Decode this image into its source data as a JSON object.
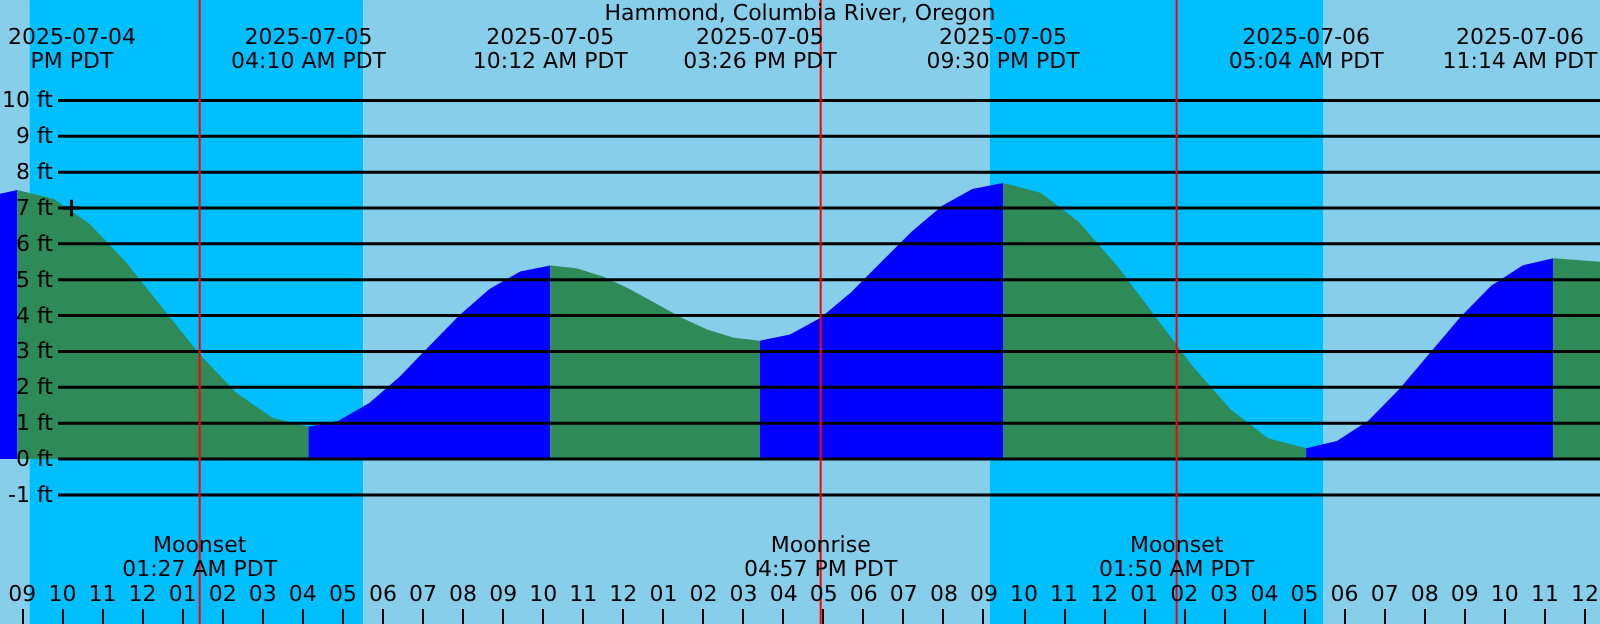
{
  "chart_data": {
    "type": "area",
    "title": "Hammond, Columbia River, Oregon",
    "series": [
      {
        "color": "#0000ff",
        "x": [
          "2025-07-04T20:28",
          "2025-07-04T20:54"
        ],
        "values": [
          7.4,
          7.5
        ]
      },
      {
        "color": "#2e8b57",
        "x": [
          "2025-07-04T20:54",
          "2025-07-04T21:49",
          "2025-07-04T22:43",
          "2025-07-04T23:38",
          "2025-07-05T00:32",
          "2025-07-05T01:26",
          "2025-07-05T02:21",
          "2025-07-05T03:16",
          "2025-07-05T04:10"
        ],
        "values": [
          7.5,
          7.25,
          6.54,
          5.46,
          4.2,
          2.94,
          1.86,
          1.15,
          0.9
        ]
      },
      {
        "color": "#0000ff",
        "x": [
          "2025-07-05T04:10",
          "2025-07-05T04:55",
          "2025-07-05T05:41",
          "2025-07-05T06:26",
          "2025-07-05T07:11",
          "2025-07-05T07:56",
          "2025-07-05T08:41",
          "2025-07-05T09:27",
          "2025-07-05T10:12"
        ],
        "values": [
          0.9,
          1.07,
          1.56,
          2.29,
          3.15,
          4.01,
          4.74,
          5.23,
          5.4
        ]
      },
      {
        "color": "#2e8b57",
        "x": [
          "2025-07-05T10:12",
          "2025-07-05T10:51",
          "2025-07-05T11:31",
          "2025-07-05T12:10",
          "2025-07-05T12:49",
          "2025-07-05T13:28",
          "2025-07-05T14:07",
          "2025-07-05T14:47",
          "2025-07-05T15:26"
        ],
        "values": [
          5.4,
          5.32,
          5.09,
          4.75,
          4.35,
          3.95,
          3.61,
          3.38,
          3.3
        ]
      },
      {
        "color": "#0000ff",
        "x": [
          "2025-07-05T15:26",
          "2025-07-05T16:11",
          "2025-07-05T16:57",
          "2025-07-05T17:43",
          "2025-07-05T18:28",
          "2025-07-05T19:13",
          "2025-07-05T19:59",
          "2025-07-05T20:44",
          "2025-07-05T21:30"
        ],
        "values": [
          3.3,
          3.47,
          3.94,
          4.66,
          5.5,
          6.34,
          7.06,
          7.53,
          7.7
        ]
      },
      {
        "color": "#2e8b57",
        "x": [
          "2025-07-05T21:30",
          "2025-07-05T22:27",
          "2025-07-05T23:23",
          "2025-07-06T00:20",
          "2025-07-06T01:17",
          "2025-07-06T02:14",
          "2025-07-06T03:11",
          "2025-07-06T04:07",
          "2025-07-06T05:04"
        ],
        "values": [
          7.7,
          7.42,
          6.62,
          5.41,
          4.0,
          2.59,
          1.38,
          0.58,
          0.3
        ]
      },
      {
        "color": "#0000ff",
        "x": [
          "2025-07-06T05:04",
          "2025-07-06T05:50",
          "2025-07-06T06:37",
          "2025-07-06T07:23",
          "2025-07-06T08:09",
          "2025-07-06T08:55",
          "2025-07-06T09:41",
          "2025-07-06T10:28",
          "2025-07-06T11:14"
        ],
        "values": [
          0.3,
          0.5,
          1.07,
          1.94,
          2.95,
          3.96,
          4.83,
          5.4,
          5.6
        ]
      },
      {
        "color": "#2e8b57",
        "x": [
          "2025-07-06T11:14",
          "2025-07-06T12:24"
        ],
        "values": [
          5.6,
          5.5
        ]
      },
      {
        "type": "scatter",
        "marker": "cross",
        "color": "#000000",
        "x": [
          "2025-07-04T22:15"
        ],
        "values": [
          7.0
        ]
      }
    ],
    "xlim": [
      "2025-07-04T20:28",
      "2025-07-06T12:24"
    ],
    "ylim": [
      -4.6,
      12.8
    ],
    "yticks": [
      {
        "value": -1,
        "label": "-1 ft"
      },
      {
        "value": 0,
        "label": "0 ft"
      },
      {
        "value": 1,
        "label": "1 ft"
      },
      {
        "value": 2,
        "label": "2 ft"
      },
      {
        "value": 3,
        "label": "3 ft"
      },
      {
        "value": 4,
        "label": "4 ft"
      },
      {
        "value": 5,
        "label": "5 ft"
      },
      {
        "value": 6,
        "label": "6 ft"
      },
      {
        "value": 7,
        "label": "7 ft"
      },
      {
        "value": 8,
        "label": "8 ft"
      },
      {
        "value": 9,
        "label": "9 ft"
      },
      {
        "value": 10,
        "label": "10 ft"
      }
    ],
    "xticks": [
      {
        "value": "2025-07-04T21:00",
        "label": "09"
      },
      {
        "value": "2025-07-04T22:00",
        "label": "10"
      },
      {
        "value": "2025-07-04T23:00",
        "label": "11"
      },
      {
        "value": "2025-07-05T00:00",
        "label": "12"
      },
      {
        "value": "2025-07-05T01:00",
        "label": "01"
      },
      {
        "value": "2025-07-05T02:00",
        "label": "02"
      },
      {
        "value": "2025-07-05T03:00",
        "label": "03"
      },
      {
        "value": "2025-07-05T04:00",
        "label": "04"
      },
      {
        "value": "2025-07-05T05:00",
        "label": "05"
      },
      {
        "value": "2025-07-05T06:00",
        "label": "06"
      },
      {
        "value": "2025-07-05T07:00",
        "label": "07"
      },
      {
        "value": "2025-07-05T08:00",
        "label": "08"
      },
      {
        "value": "2025-07-05T09:00",
        "label": "09"
      },
      {
        "value": "2025-07-05T10:00",
        "label": "10"
      },
      {
        "value": "2025-07-05T11:00",
        "label": "11"
      },
      {
        "value": "2025-07-05T12:00",
        "label": "12"
      },
      {
        "value": "2025-07-05T13:00",
        "label": "01"
      },
      {
        "value": "2025-07-05T14:00",
        "label": "02"
      },
      {
        "value": "2025-07-05T15:00",
        "label": "03"
      },
      {
        "value": "2025-07-05T16:00",
        "label": "04"
      },
      {
        "value": "2025-07-05T17:00",
        "label": "05"
      },
      {
        "value": "2025-07-05T18:00",
        "label": "06"
      },
      {
        "value": "2025-07-05T19:00",
        "label": "07"
      },
      {
        "value": "2025-07-05T20:00",
        "label": "08"
      },
      {
        "value": "2025-07-05T21:00",
        "label": "09"
      },
      {
        "value": "2025-07-05T22:00",
        "label": "10"
      },
      {
        "value": "2025-07-05T23:00",
        "label": "11"
      },
      {
        "value": "2025-07-06T00:00",
        "label": "12"
      },
      {
        "value": "2025-07-06T01:00",
        "label": "01"
      },
      {
        "value": "2025-07-06T02:00",
        "label": "02"
      },
      {
        "value": "2025-07-06T03:00",
        "label": "03"
      },
      {
        "value": "2025-07-06T04:00",
        "label": "04"
      },
      {
        "value": "2025-07-06T05:00",
        "label": "05"
      },
      {
        "value": "2025-07-06T06:00",
        "label": "06"
      },
      {
        "value": "2025-07-06T07:00",
        "label": "07"
      },
      {
        "value": "2025-07-06T08:00",
        "label": "08"
      },
      {
        "value": "2025-07-06T09:00",
        "label": "09"
      },
      {
        "value": "2025-07-06T10:00",
        "label": "10"
      },
      {
        "value": "2025-07-06T11:00",
        "label": "11"
      },
      {
        "value": "2025-07-06T12:00",
        "label": "12"
      }
    ],
    "grid": "y",
    "bands": [
      {
        "axis": "x",
        "from": "2025-07-04T20:28",
        "to": "2025-07-04T21:12",
        "color": "#87ceeb"
      },
      {
        "axis": "x",
        "from": "2025-07-04T21:12",
        "to": "2025-07-05T05:32",
        "color": "#00bfff"
      },
      {
        "axis": "x",
        "from": "2025-07-05T05:32",
        "to": "2025-07-05T21:10",
        "color": "#87ceeb"
      },
      {
        "axis": "x",
        "from": "2025-07-05T21:10",
        "to": "2025-07-06T05:30",
        "color": "#00bfff"
      },
      {
        "axis": "x",
        "from": "2025-07-06T05:30",
        "to": "2025-07-06T12:24",
        "color": "#87ceeb"
      }
    ],
    "ref_lines": [
      {
        "axis": "x",
        "value": "2025-07-05T01:27",
        "label": "Moonset\n01:27 AM PDT",
        "color": "#ff0000"
      },
      {
        "axis": "x",
        "value": "2025-07-05T16:57",
        "label": "Moonrise\n04:57 PM PDT",
        "color": "#ff0000"
      },
      {
        "axis": "x",
        "value": "2025-07-06T01:50",
        "label": "Moonset\n01:50 AM PDT",
        "color": "#ff0000"
      }
    ],
    "annotations": [
      "2025-07-04\nPM PDT",
      "2025-07-05\n04:10 AM PDT",
      "2025-07-05\n10:12 AM PDT",
      "2025-07-05\n03:26 PM PDT",
      "2025-07-05\n09:30 PM PDT",
      "2025-07-06\n05:04 AM PDT",
      "2025-07-06\n11:14 AM PDT"
    ]
  }
}
